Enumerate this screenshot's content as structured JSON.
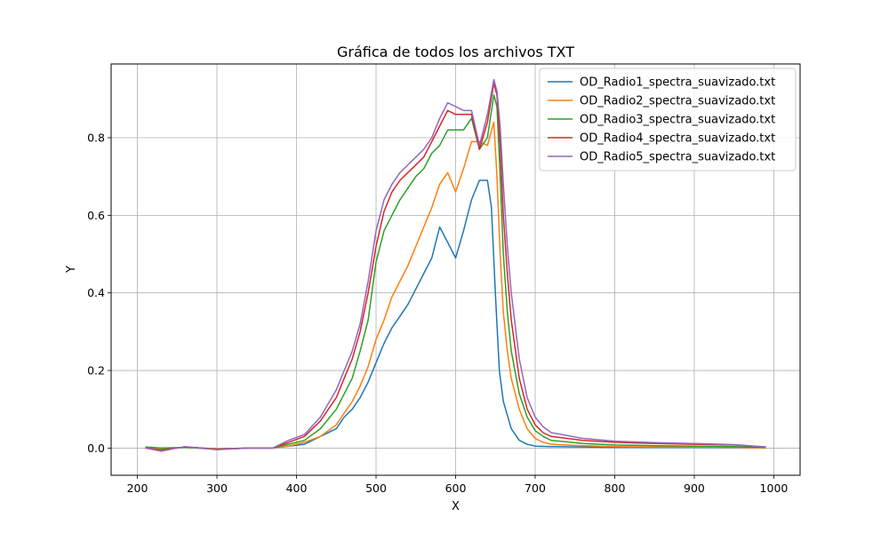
{
  "chart_data": {
    "type": "line",
    "title": "Gráfica de todos los archivos TXT",
    "xlabel": "X",
    "ylabel": "Y",
    "xlim": [
      167,
      1033
    ],
    "ylim": [
      -0.07,
      0.99
    ],
    "xticks": [
      200,
      300,
      400,
      500,
      600,
      700,
      800,
      900,
      1000
    ],
    "yticks": [
      0.0,
      0.2,
      0.4,
      0.6,
      0.8
    ],
    "ytick_labels": [
      "0.0",
      "0.2",
      "0.4",
      "0.6",
      "0.8"
    ],
    "grid": true,
    "legend_position": "top-right",
    "series": [
      {
        "name": "OD_Radio1_spectra_suavizado.txt",
        "color": "#1f77b4",
        "x": [
          210,
          230,
          260,
          300,
          340,
          370,
          390,
          410,
          430,
          450,
          460,
          470,
          480,
          490,
          500,
          510,
          520,
          530,
          540,
          550,
          560,
          570,
          580,
          590,
          600,
          610,
          620,
          630,
          640,
          645,
          650,
          655,
          660,
          670,
          680,
          690,
          700,
          720,
          760,
          800,
          850,
          900,
          950,
          990
        ],
        "y": [
          0.0,
          -0.005,
          0.003,
          -0.002,
          0.0,
          0.0,
          0.005,
          0.01,
          0.03,
          0.05,
          0.08,
          0.1,
          0.13,
          0.17,
          0.22,
          0.27,
          0.31,
          0.34,
          0.37,
          0.41,
          0.45,
          0.49,
          0.57,
          0.53,
          0.49,
          0.56,
          0.64,
          0.69,
          0.69,
          0.62,
          0.4,
          0.2,
          0.12,
          0.05,
          0.02,
          0.01,
          0.005,
          0.004,
          0.003,
          0.002,
          0.002,
          0.002,
          0.001,
          0.0
        ]
      },
      {
        "name": "OD_Radio2_spectra_suavizado.txt",
        "color": "#ff7f0e",
        "x": [
          210,
          230,
          260,
          300,
          340,
          370,
          390,
          410,
          430,
          450,
          460,
          470,
          480,
          490,
          500,
          510,
          520,
          530,
          540,
          550,
          560,
          570,
          580,
          590,
          600,
          610,
          620,
          630,
          640,
          648,
          652,
          656,
          660,
          665,
          670,
          680,
          690,
          700,
          710,
          720,
          760,
          800,
          850,
          900,
          950,
          990
        ],
        "y": [
          0.0,
          -0.003,
          0.002,
          -0.002,
          0.0,
          0.0,
          0.005,
          0.015,
          0.03,
          0.06,
          0.09,
          0.12,
          0.16,
          0.21,
          0.28,
          0.33,
          0.39,
          0.43,
          0.47,
          0.52,
          0.57,
          0.62,
          0.68,
          0.71,
          0.66,
          0.72,
          0.79,
          0.79,
          0.78,
          0.84,
          0.7,
          0.5,
          0.35,
          0.25,
          0.18,
          0.1,
          0.05,
          0.025,
          0.015,
          0.01,
          0.006,
          0.004,
          0.003,
          0.003,
          0.002,
          0.0
        ]
      },
      {
        "name": "OD_Radio3_spectra_suavizado.txt",
        "color": "#2ca02c",
        "x": [
          210,
          230,
          260,
          300,
          340,
          370,
          390,
          410,
          430,
          450,
          460,
          470,
          480,
          490,
          500,
          510,
          520,
          530,
          540,
          550,
          560,
          570,
          580,
          590,
          600,
          610,
          620,
          630,
          640,
          648,
          652,
          656,
          660,
          665,
          670,
          680,
          690,
          700,
          710,
          720,
          760,
          800,
          850,
          900,
          950,
          990
        ],
        "y": [
          0.003,
          0.0,
          0.002,
          -0.003,
          0.0,
          0.0,
          0.01,
          0.02,
          0.05,
          0.1,
          0.14,
          0.18,
          0.25,
          0.33,
          0.48,
          0.56,
          0.6,
          0.64,
          0.67,
          0.7,
          0.72,
          0.76,
          0.78,
          0.82,
          0.82,
          0.82,
          0.85,
          0.77,
          0.8,
          0.91,
          0.88,
          0.7,
          0.5,
          0.35,
          0.25,
          0.14,
          0.08,
          0.045,
          0.03,
          0.02,
          0.012,
          0.008,
          0.006,
          0.005,
          0.004,
          0.002
        ]
      },
      {
        "name": "OD_Radio4_spectra_suavizado.txt",
        "color": "#d62728",
        "x": [
          210,
          230,
          260,
          300,
          340,
          370,
          390,
          410,
          430,
          450,
          460,
          470,
          480,
          490,
          500,
          510,
          520,
          530,
          540,
          550,
          560,
          570,
          580,
          590,
          600,
          610,
          620,
          630,
          640,
          648,
          652,
          656,
          660,
          665,
          670,
          680,
          690,
          700,
          710,
          720,
          760,
          800,
          850,
          900,
          950,
          990
        ],
        "y": [
          0.0,
          -0.005,
          0.003,
          -0.003,
          0.0,
          0.0,
          0.015,
          0.03,
          0.07,
          0.13,
          0.18,
          0.23,
          0.3,
          0.4,
          0.52,
          0.61,
          0.66,
          0.69,
          0.71,
          0.73,
          0.75,
          0.79,
          0.83,
          0.87,
          0.86,
          0.86,
          0.86,
          0.77,
          0.84,
          0.94,
          0.91,
          0.78,
          0.6,
          0.45,
          0.33,
          0.18,
          0.1,
          0.06,
          0.04,
          0.03,
          0.02,
          0.015,
          0.012,
          0.01,
          0.008,
          0.003
        ]
      },
      {
        "name": "OD_Radio5_spectra_suavizado.txt",
        "color": "#9467bd",
        "x": [
          210,
          230,
          260,
          300,
          340,
          370,
          390,
          410,
          430,
          450,
          460,
          470,
          480,
          490,
          500,
          510,
          520,
          530,
          540,
          550,
          560,
          570,
          580,
          590,
          600,
          610,
          620,
          630,
          640,
          648,
          652,
          656,
          660,
          665,
          670,
          680,
          690,
          700,
          710,
          720,
          760,
          800,
          850,
          900,
          950,
          990
        ],
        "y": [
          0.0,
          -0.008,
          0.004,
          -0.004,
          0.0,
          0.0,
          0.02,
          0.035,
          0.08,
          0.15,
          0.2,
          0.25,
          0.32,
          0.43,
          0.56,
          0.64,
          0.68,
          0.71,
          0.73,
          0.75,
          0.77,
          0.8,
          0.85,
          0.89,
          0.88,
          0.87,
          0.87,
          0.78,
          0.86,
          0.95,
          0.92,
          0.83,
          0.68,
          0.52,
          0.4,
          0.23,
          0.13,
          0.08,
          0.055,
          0.04,
          0.025,
          0.018,
          0.014,
          0.012,
          0.009,
          0.003
        ]
      }
    ]
  }
}
